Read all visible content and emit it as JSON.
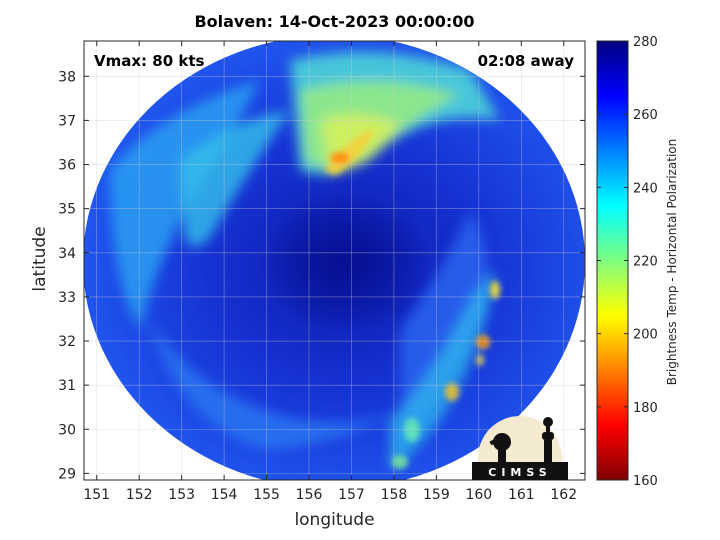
{
  "title": "Bolaven: 14-Oct-2023 00:00:00",
  "annotations": {
    "vmax": "Vmax: 80 kts",
    "away": "02:08 away"
  },
  "axes": {
    "xlabel": "longitude",
    "ylabel": "latitude",
    "xticks": [
      151,
      152,
      153,
      154,
      155,
      156,
      157,
      158,
      159,
      160,
      161,
      162
    ],
    "yticks": [
      29,
      30,
      31,
      32,
      33,
      34,
      35,
      36,
      37,
      38
    ],
    "xlim": [
      150.7,
      162.5
    ],
    "ylim": [
      28.85,
      38.8
    ],
    "grid": true
  },
  "colorbar": {
    "label": "Brightness Temp - Horizontal Polarization",
    "ticks": [
      160,
      180,
      200,
      220,
      240,
      260,
      280
    ],
    "range": [
      160,
      280
    ],
    "colormap": "jet",
    "orientation": "vertical",
    "placement": "right"
  },
  "storm_center": {
    "lon": 156.3,
    "lat": 34.0
  },
  "logo": {
    "text": "CIMSS"
  },
  "colors": {
    "background": "#ffffff",
    "axis": "#262626",
    "grid": "#d0d0d0"
  }
}
